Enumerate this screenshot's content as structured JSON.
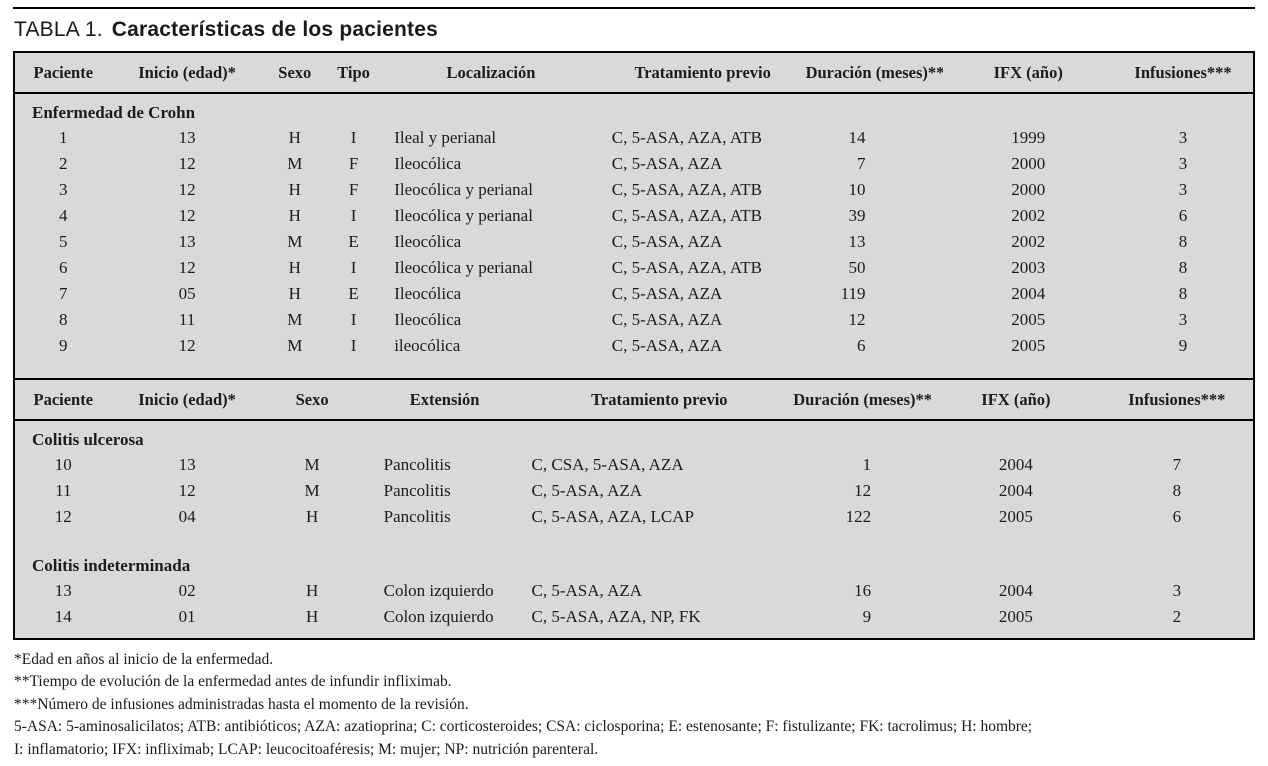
{
  "title": {
    "label": "TABLA 1.",
    "text": "Características de los pacientes"
  },
  "colors": {
    "table_background": "#d9d9d9",
    "border": "#000000",
    "text": "#1a1a1a"
  },
  "section_crohn": {
    "headers": [
      "Paciente",
      "Inicio (edad)*",
      "Sexo",
      "Tipo",
      "Localización",
      "Tratamiento previo",
      "Duración (meses)**",
      "IFX (año)",
      "Infusiones***"
    ],
    "group_label": "Enfermedad de Crohn",
    "rows": [
      [
        "1",
        "13",
        "H",
        "I",
        "Ileal y perianal",
        "C, 5-ASA, AZA, ATB",
        "14",
        "1999",
        "3"
      ],
      [
        "2",
        "12",
        "M",
        "F",
        "Ileocólica",
        "C, 5-ASA, AZA",
        "7",
        "2000",
        "3"
      ],
      [
        "3",
        "12",
        "H",
        "F",
        "Ileocólica y perianal",
        "C, 5-ASA, AZA, ATB",
        "10",
        "2000",
        "3"
      ],
      [
        "4",
        "12",
        "H",
        "I",
        "Ileocólica y perianal",
        "C, 5-ASA, AZA, ATB",
        "39",
        "2002",
        "6"
      ],
      [
        "5",
        "13",
        "M",
        "E",
        "Ileocólica",
        "C, 5-ASA, AZA",
        "13",
        "2002",
        "8"
      ],
      [
        "6",
        "12",
        "H",
        "I",
        "Ileocólica y perianal",
        "C, 5-ASA, AZA, ATB",
        "50",
        "2003",
        "8"
      ],
      [
        "7",
        "05",
        "H",
        "E",
        "Ileocólica",
        "C, 5-ASA, AZA",
        "119",
        "2004",
        "8"
      ],
      [
        "8",
        "11",
        "M",
        "I",
        "Ileocólica",
        "C, 5-ASA, AZA",
        "12",
        "2005",
        "3"
      ],
      [
        "9",
        "12",
        "M",
        "I",
        "ileocólica",
        "C, 5-ASA, AZA",
        "6",
        "2005",
        "9"
      ]
    ]
  },
  "section_colitis": {
    "headers": [
      "Paciente",
      "Inicio (edad)*",
      "Sexo",
      "Extensión",
      "Tratamiento previo",
      "Duración (meses)**",
      "IFX (año)",
      "Infusiones***"
    ],
    "group_ulcerosa": {
      "label": "Colitis ulcerosa",
      "rows": [
        [
          "10",
          "13",
          "M",
          "Pancolitis",
          "C, CSA, 5-ASA, AZA",
          "1",
          "2004",
          "7"
        ],
        [
          "11",
          "12",
          "M",
          "Pancolitis",
          "C, 5-ASA, AZA",
          "12",
          "2004",
          "8"
        ],
        [
          "12",
          "04",
          "H",
          "Pancolitis",
          "C, 5-ASA, AZA, LCAP",
          "122",
          "2005",
          "6"
        ]
      ]
    },
    "group_indeterminada": {
      "label": "Colitis indeterminada",
      "rows": [
        [
          "13",
          "02",
          "H",
          "Colon izquierdo",
          "C, 5-ASA, AZA",
          "16",
          "2004",
          "3"
        ],
        [
          "14",
          "01",
          "H",
          "Colon izquierdo",
          "C, 5-ASA, AZA, NP, FK",
          "9",
          "2005",
          "2"
        ]
      ]
    }
  },
  "footnotes": [
    "*Edad en años al inicio de la enfermedad.",
    "**Tiempo de evolución de la enfermedad antes de infundir infliximab.",
    "***Número de infusiones administradas hasta el momento de la revisión.",
    "5-ASA: 5-aminosalicilatos; ATB: antibióticos; AZA: azatioprina; C: corticosteroides; CSA: ciclosporina; E: estenosante; F: fistulizante; FK: tacrolimus; H: hombre;",
    "I: inflamatorio; IFX: infliximab; LCAP: leucocitoaféresis; M: mujer; NP: nutrición parenteral."
  ]
}
